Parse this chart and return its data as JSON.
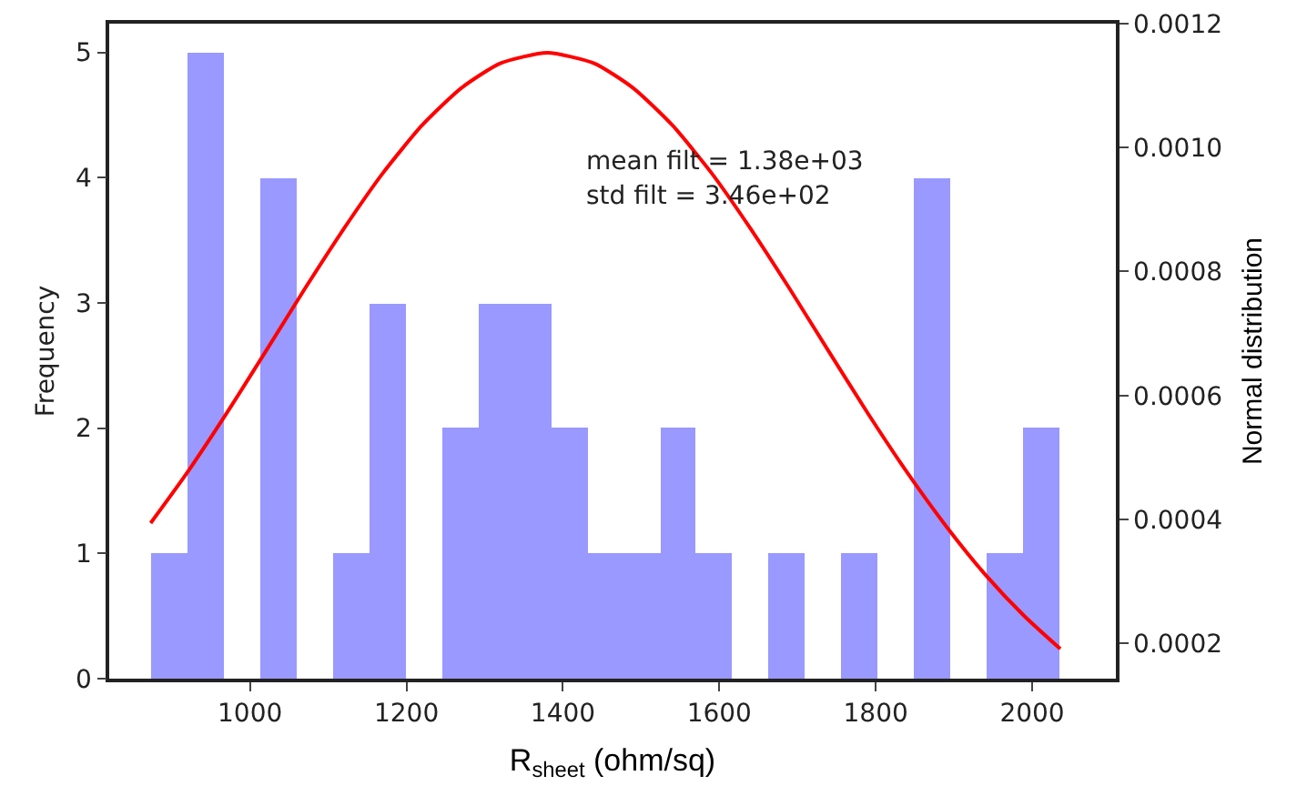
{
  "chart_data": {
    "type": "histogram",
    "xlabel": "R$_{sheet}$ (ohm/sq)",
    "ylabel": "Frequency",
    "y2label": "Normal distribution",
    "annotations": [
      "mean filt = 1.38e+03",
      "std filt = 3.46e+02"
    ],
    "series": [
      {
        "color": "#9999ff",
        "bins": [
          873,
          919.5,
          966,
          1012.5,
          1059,
          1105.5,
          1152,
          1198.5,
          1245,
          1291.5,
          1338,
          1384.5,
          1431,
          1477.5,
          1524,
          1570.5,
          1617,
          1663.5,
          1710,
          1756.5,
          1803,
          1849.5,
          1896,
          1942.5,
          1989,
          2035.5
        ],
        "values": [
          1,
          5,
          0,
          4,
          0,
          1,
          3,
          0,
          2,
          3,
          3,
          2,
          1,
          1,
          2,
          1,
          0,
          1,
          0,
          1,
          0,
          4,
          0,
          1,
          2
        ]
      },
      {
        "type": "line",
        "axis": "y2",
        "color": "#ff0000",
        "x": [
          873,
          920,
          970,
          1020,
          1070,
          1120,
          1170,
          1220,
          1270,
          1320,
          1380,
          1440,
          1490,
          1540,
          1590,
          1640,
          1690,
          1740,
          1790,
          1840,
          1890,
          1940,
          1990,
          2036
        ],
        "values": [
          0.000394,
          0.000476,
          0.000571,
          0.000671,
          0.000772,
          0.000869,
          0.000959,
          0.001036,
          0.001096,
          0.001136,
          0.001153,
          0.001136,
          0.001096,
          0.001036,
          0.000959,
          0.000869,
          0.000772,
          0.000671,
          0.000571,
          0.000476,
          0.000389,
          0.000311,
          0.000244,
          0.000191
        ]
      }
    ],
    "xlim": [
      820,
      2107
    ],
    "xticks": [
      1000,
      1200,
      1400,
      1600,
      1800,
      2000
    ],
    "ylim": [
      0,
      5.23
    ],
    "yticks": [
      0,
      1,
      2,
      3,
      4,
      5
    ],
    "y2lim": [
      0.000143,
      0.0012
    ],
    "y2ticks": [
      {
        "value": 0.0002,
        "label": "0.0002"
      },
      {
        "value": 0.0004,
        "label": "0.0004"
      },
      {
        "value": 0.0006,
        "label": "0.0006"
      },
      {
        "value": 0.0008,
        "label": "0.0008"
      },
      {
        "value": 0.001,
        "label": "0.0010"
      },
      {
        "value": 0.0012,
        "label": "0.0012"
      }
    ],
    "grid": false
  }
}
